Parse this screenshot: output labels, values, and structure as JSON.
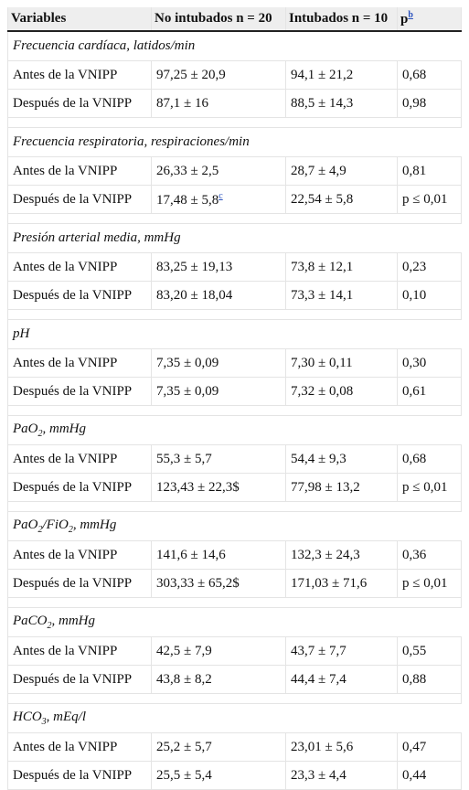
{
  "table": {
    "header": [
      "Variables",
      "No intubados n = 20",
      "Intubados n = 10",
      {
        "text": "p",
        "sup": "b"
      }
    ],
    "groups": [
      {
        "label": [
          "Frecuencia cardíaca, latidos/min"
        ],
        "rows": [
          [
            "Antes de la VNIPP",
            "97,25 ± 20,9",
            "94,1 ± 21,2",
            "0,68"
          ],
          [
            "Después de la VNIPP",
            "87,1 ± 16",
            "88,5 ± 14,3",
            "0,98"
          ]
        ]
      },
      {
        "label": [
          "Frecuencia respiratoria, respiraciones/min"
        ],
        "rows": [
          [
            "Antes de la VNIPP",
            "26,33 ± 2,5",
            "28,7 ± 4,9",
            "0,81"
          ],
          [
            "Después de la VNIPP",
            {
              "text": "17,48 ± 5,8",
              "sup": "c"
            },
            "22,54 ± 5,8",
            "p ≤ 0,01"
          ]
        ]
      },
      {
        "label": [
          "Presión arterial media, mmHg"
        ],
        "rows": [
          [
            "Antes de la VNIPP",
            "83,25 ± 19,13",
            "73,8 ± 12,1",
            "0,23"
          ],
          [
            "Después de la VNIPP",
            "83,20 ± 18,04",
            "73,3 ± 14,1",
            "0,10"
          ]
        ]
      },
      {
        "label": [
          "pH"
        ],
        "rows": [
          [
            "Antes de la VNIPP",
            "7,35 ± 0,09",
            "7,30 ± 0,11",
            "0,30"
          ],
          [
            "Después de la VNIPP",
            "7,35 ± 0,09",
            "7,32 ± 0,08",
            "0,61"
          ]
        ]
      },
      {
        "label": [
          "PaO",
          "2",
          ", mmHg"
        ],
        "rows": [
          [
            "Antes de la VNIPP",
            "55,3 ± 5,7",
            "54,4 ± 9,3",
            "0,68"
          ],
          [
            "Después de la VNIPP",
            "123,43 ± 22,3$",
            "77,98 ± 13,2",
            "p ≤ 0,01"
          ]
        ]
      },
      {
        "label": [
          "PaO",
          "2",
          "/FiO",
          "2",
          ", mmHg"
        ],
        "rows": [
          [
            "Antes de la VNIPP",
            "141,6 ± 14,6",
            "132,3 ± 24,3",
            "0,36"
          ],
          [
            "Después de la VNIPP",
            "303,33 ± 65,2$",
            "171,03 ± 71,6",
            "p ≤ 0,01"
          ]
        ]
      },
      {
        "label": [
          "PaCO",
          "2",
          ", mmHg"
        ],
        "rows": [
          [
            "Antes de la VNIPP",
            "42,5 ± 7,9",
            "43,7 ± 7,7",
            "0,55"
          ],
          [
            "Después de la VNIPP",
            "43,8 ± 8,2",
            "44,4 ± 7,4",
            "0,88"
          ]
        ]
      },
      {
        "label": [
          "HCO",
          "3",
          ", mEq/l"
        ],
        "rows": [
          [
            "Antes de la VNIPP",
            "25,2 ± 5,7",
            "23,01 ± 5,6",
            "0,47"
          ],
          [
            "Después de la VNIPP",
            "25,5 ± 5,4",
            "23,3 ± 4,4",
            "0,44"
          ]
        ]
      }
    ]
  }
}
